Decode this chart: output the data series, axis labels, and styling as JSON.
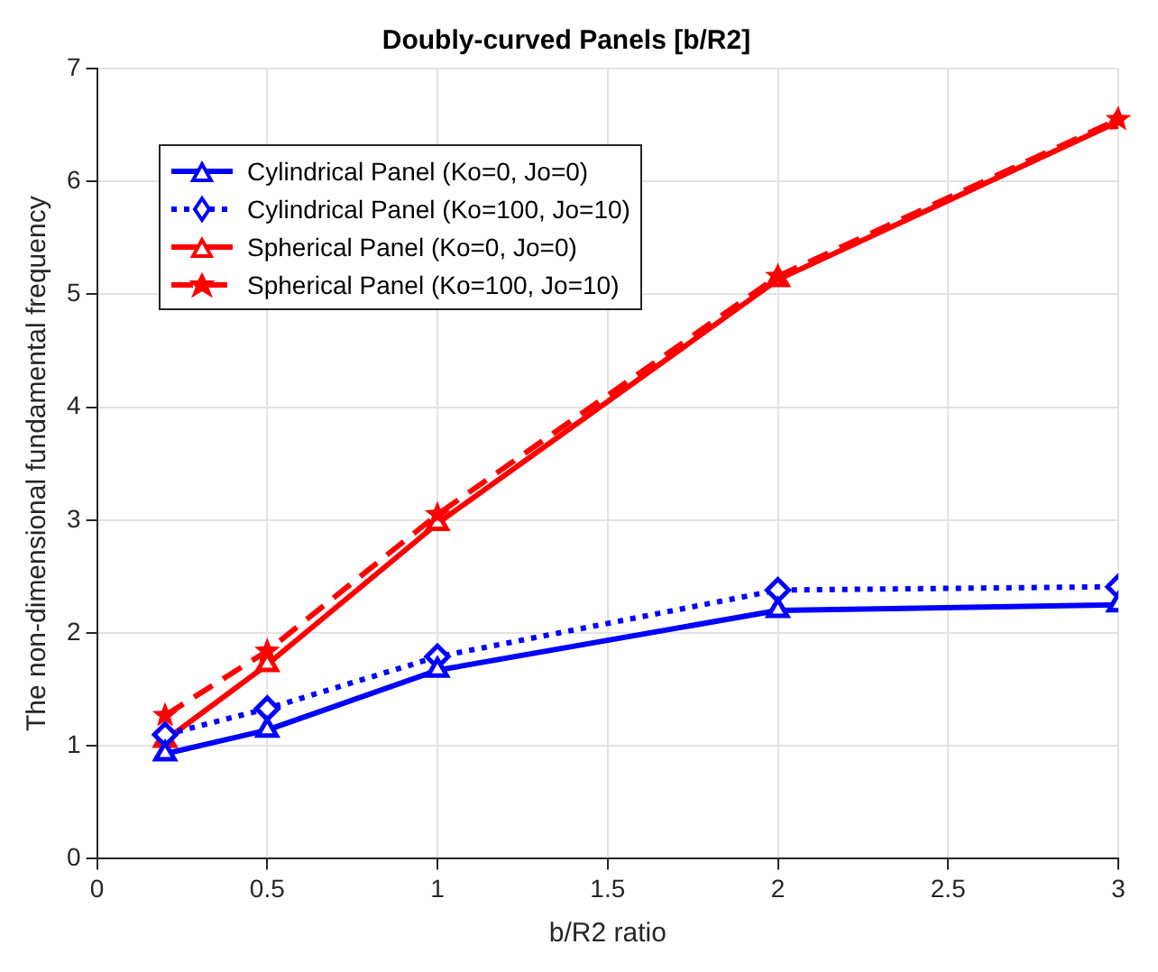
{
  "chart_data": {
    "type": "line",
    "title": "Doubly-curved Panels [b/R2]",
    "xlabel": "b/R2 ratio",
    "ylabel": "The non-dimensional fundamental frequency",
    "x": [
      0.2,
      0.5,
      1,
      2,
      3
    ],
    "series": [
      {
        "name": "Cylindrical Panel (Ko=0, Jo=0)",
        "color": "#0000ff",
        "values": [
          0.93,
          1.14,
          1.67,
          2.2,
          2.25
        ],
        "marker": "triangle",
        "line_style": "solid"
      },
      {
        "name": "Cylindrical Panel (Ko=100, Jo=10)",
        "color": "#0000ff",
        "values": [
          1.1,
          1.33,
          1.79,
          2.38,
          2.41
        ],
        "marker": "diamond",
        "line_style": "dotted"
      },
      {
        "name": "Spherical Panel (Ko=0, Jo=0)",
        "color": "#ff0000",
        "values": [
          1.05,
          1.72,
          2.97,
          5.13,
          6.53
        ],
        "marker": "triangle",
        "line_style": "solid"
      },
      {
        "name": "Spherical Panel (Ko=100, Jo=10)",
        "color": "#ff0000",
        "values": [
          1.27,
          1.84,
          3.05,
          5.16,
          6.55
        ],
        "marker": "star",
        "line_style": "dashed"
      }
    ],
    "xlim": [
      0,
      3
    ],
    "xticks": [
      0,
      0.5,
      1,
      1.5,
      2,
      2.5,
      3
    ],
    "ylim": [
      0,
      7
    ],
    "yticks": [
      0,
      1,
      2,
      3,
      4,
      5,
      6,
      7
    ],
    "grid": true,
    "legend": "top left"
  }
}
